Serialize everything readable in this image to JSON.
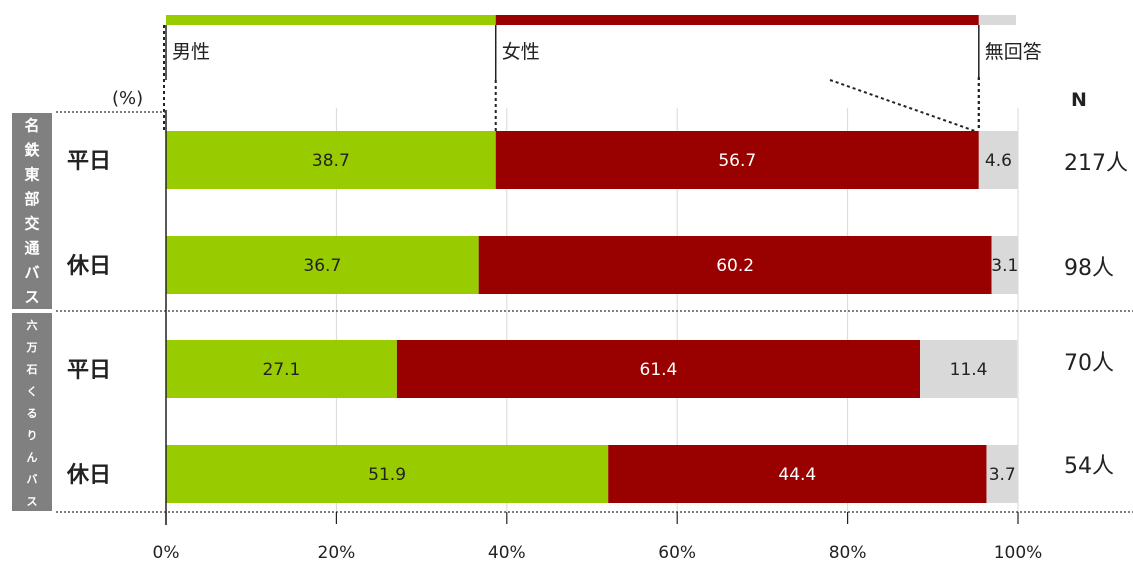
{
  "chart_data": {
    "type": "bar",
    "orientation": "horizontal",
    "stacked": true,
    "percent_unit": "(%)",
    "n_header": "N",
    "groups": [
      {
        "label": "名鉄東部交通バス",
        "rows": [
          0,
          1
        ]
      },
      {
        "label": "六万石くるりんバス",
        "rows": [
          2,
          3
        ]
      }
    ],
    "categories": [
      "平日",
      "休日",
      "平日",
      "休日"
    ],
    "n_values": [
      "217人",
      "98人",
      "70人",
      "54人"
    ],
    "series": [
      {
        "name": "男性",
        "color": "#99cc00",
        "values": [
          38.7,
          36.7,
          27.1,
          51.9
        ],
        "labels": [
          "38.7",
          "36.7",
          "27.1",
          "51.9"
        ]
      },
      {
        "name": "女性",
        "color": "#990000",
        "values": [
          56.7,
          60.2,
          61.4,
          44.4
        ],
        "labels": [
          "56.7",
          "60.2",
          "61.4",
          "44.4"
        ]
      },
      {
        "name": "無回答",
        "color": "#d9d9d9",
        "values": [
          4.6,
          3.1,
          11.4,
          3.7
        ],
        "labels": [
          "4.6",
          "3.1",
          "11.4",
          "3.7"
        ]
      }
    ],
    "xlim": [
      0,
      100
    ],
    "xticks": [
      0,
      20,
      40,
      60,
      80,
      100
    ],
    "xtick_labels": [
      "0%",
      "20%",
      "40%",
      "60%",
      "80%",
      "100%"
    ],
    "grid": true,
    "legend": "top"
  }
}
